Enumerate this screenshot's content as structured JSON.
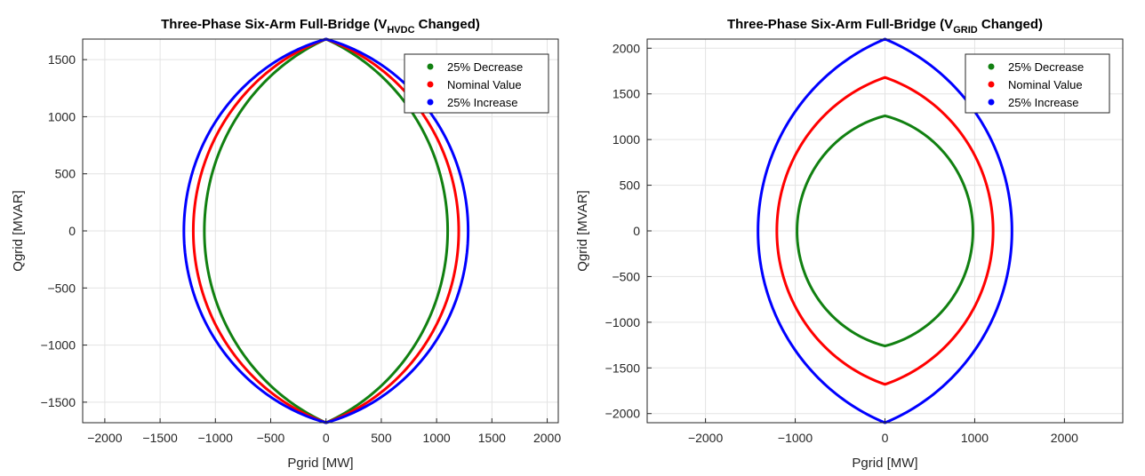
{
  "chart_data": [
    {
      "type": "line",
      "title": {
        "main": "Three-Phase Six-Arm Full-Bridge (V",
        "sub": "HVDC",
        "tail": " Changed)"
      },
      "xlabel": "Pgrid [MW]",
      "ylabel": "Qgrid [MVAR]",
      "xlim": [
        -2200,
        2100
      ],
      "ylim": [
        -1680,
        1680
      ],
      "xticks": [
        -2000,
        -1500,
        -1000,
        -500,
        0,
        500,
        1000,
        1500,
        2000
      ],
      "yticks": [
        -1500,
        -1000,
        -500,
        0,
        500,
        1000,
        1500
      ],
      "grid": true,
      "legend_position": "top-right",
      "series": [
        {
          "name": "25% Decrease",
          "color": "#118011",
          "p_max": 1100,
          "q_max": 1680
        },
        {
          "name": "Nominal Value",
          "color": "#ff0000",
          "p_max": 1200,
          "q_max": 1680
        },
        {
          "name": "25% Increase",
          "color": "#0000ff",
          "p_max": 1285,
          "q_max": 1680
        }
      ]
    },
    {
      "type": "line",
      "title": {
        "main": "Three-Phase Six-Arm Full-Bridge (V",
        "sub": "GRID",
        "tail": " Changed)"
      },
      "xlabel": "Pgrid [MW]",
      "ylabel": "Qgrid [MVAR]",
      "xlim": [
        -2650,
        2650
      ],
      "ylim": [
        -2100,
        2100
      ],
      "xticks": [
        -2000,
        -1000,
        0,
        1000,
        2000
      ],
      "yticks": [
        -2000,
        -1500,
        -1000,
        -500,
        0,
        500,
        1000,
        1500,
        2000
      ],
      "grid": true,
      "legend_position": "top-right",
      "series": [
        {
          "name": "25% Decrease",
          "color": "#118011",
          "p_max": 980,
          "q_max": 1260
        },
        {
          "name": "Nominal Value",
          "color": "#ff0000",
          "p_max": 1205,
          "q_max": 1680
        },
        {
          "name": "25% Increase",
          "color": "#0000ff",
          "p_max": 1415,
          "q_max": 2100
        }
      ]
    }
  ]
}
